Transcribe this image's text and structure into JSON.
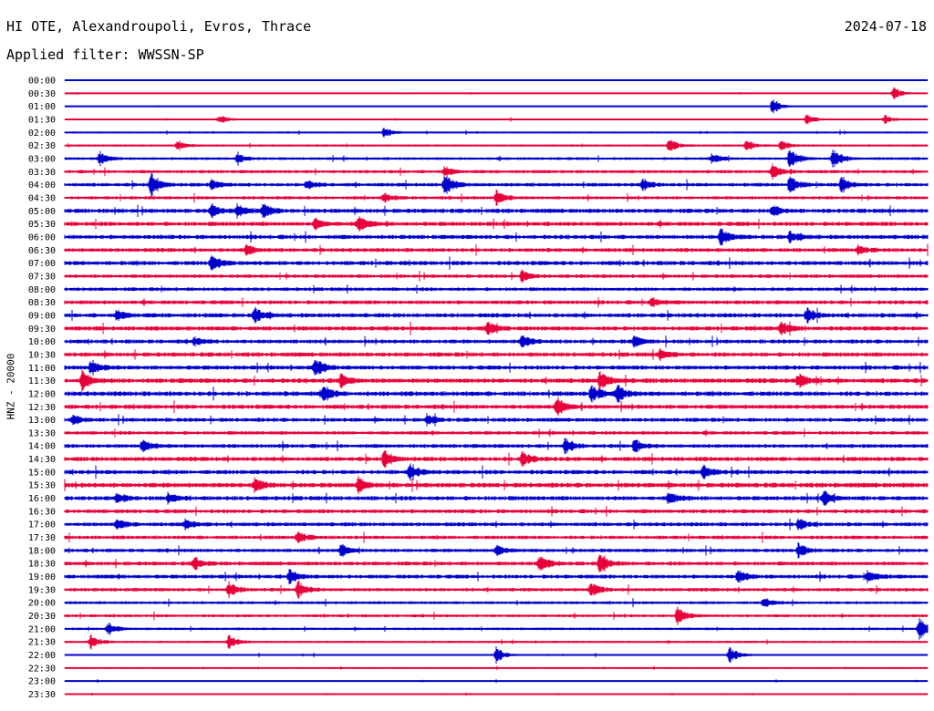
{
  "header": {
    "station": "HI OTE, Alexandroupoli, Evros, Thrace",
    "date": "2024-07-18",
    "filter": "Applied filter: WWSSN-SP"
  },
  "chart_data": {
    "type": "line",
    "title": "HI OTE, Alexandroupoli, Evros, Thrace",
    "ylabel": "HNZ - 20000",
    "xlabel": "",
    "colors": {
      "even": "#0000cc",
      "odd": "#e8003a"
    },
    "rows": [
      "00:00",
      "00:30",
      "01:00",
      "01:30",
      "02:00",
      "02:30",
      "03:00",
      "03:30",
      "04:00",
      "04:30",
      "05:00",
      "05:30",
      "06:00",
      "06:30",
      "07:00",
      "07:30",
      "08:00",
      "08:30",
      "09:00",
      "09:30",
      "10:00",
      "10:30",
      "11:00",
      "11:30",
      "12:00",
      "12:30",
      "13:00",
      "13:30",
      "14:00",
      "14:30",
      "15:00",
      "15:30",
      "16:00",
      "16:30",
      "17:00",
      "17:30",
      "18:00",
      "18:30",
      "19:00",
      "19:30",
      "20:00",
      "20:30",
      "21:00",
      "21:30",
      "22:00",
      "22:30",
      "23:00",
      "23:30"
    ],
    "noise_level": [
      0.3,
      0.5,
      0.4,
      0.8,
      1.0,
      1.2,
      1.6,
      1.8,
      2.0,
      1.8,
      2.4,
      2.4,
      2.4,
      2.2,
      2.4,
      2.0,
      2.0,
      2.2,
      2.4,
      2.4,
      2.2,
      2.4,
      2.4,
      2.6,
      2.6,
      2.4,
      2.2,
      2.0,
      2.2,
      2.4,
      2.4,
      2.6,
      2.4,
      2.2,
      2.2,
      2.0,
      2.0,
      2.2,
      2.2,
      2.0,
      1.6,
      1.6,
      1.4,
      1.2,
      1.0,
      0.8,
      0.7,
      0.6
    ],
    "events": [
      {
        "row": "00:30",
        "t": 0.96,
        "amp": 8
      },
      {
        "row": "01:00",
        "t": 0.82,
        "amp": 10
      },
      {
        "row": "01:30",
        "t": 0.18,
        "amp": 5
      },
      {
        "row": "01:30",
        "t": 0.86,
        "amp": 7
      },
      {
        "row": "01:30",
        "t": 0.95,
        "amp": 5
      },
      {
        "row": "02:00",
        "t": 0.37,
        "amp": 7
      },
      {
        "row": "02:30",
        "t": 0.13,
        "amp": 5
      },
      {
        "row": "02:30",
        "t": 0.7,
        "amp": 8
      },
      {
        "row": "02:30",
        "t": 0.79,
        "amp": 5
      },
      {
        "row": "02:30",
        "t": 0.83,
        "amp": 6
      },
      {
        "row": "03:00",
        "t": 0.04,
        "amp": 8
      },
      {
        "row": "03:00",
        "t": 0.2,
        "amp": 6
      },
      {
        "row": "03:00",
        "t": 0.75,
        "amp": 6
      },
      {
        "row": "03:00",
        "t": 0.84,
        "amp": 12
      },
      {
        "row": "03:00",
        "t": 0.89,
        "amp": 12
      },
      {
        "row": "03:30",
        "t": 0.44,
        "amp": 6
      },
      {
        "row": "03:30",
        "t": 0.82,
        "amp": 8
      },
      {
        "row": "04:00",
        "t": 0.1,
        "amp": 14
      },
      {
        "row": "04:00",
        "t": 0.17,
        "amp": 6
      },
      {
        "row": "04:00",
        "t": 0.28,
        "amp": 5
      },
      {
        "row": "04:00",
        "t": 0.44,
        "amp": 13
      },
      {
        "row": "04:00",
        "t": 0.67,
        "amp": 6
      },
      {
        "row": "04:00",
        "t": 0.84,
        "amp": 10
      },
      {
        "row": "04:00",
        "t": 0.9,
        "amp": 8
      },
      {
        "row": "04:30",
        "t": 0.37,
        "amp": 5
      },
      {
        "row": "04:30",
        "t": 0.5,
        "amp": 9
      },
      {
        "row": "05:00",
        "t": 0.17,
        "amp": 7
      },
      {
        "row": "05:00",
        "t": 0.2,
        "amp": 8
      },
      {
        "row": "05:00",
        "t": 0.23,
        "amp": 8
      },
      {
        "row": "05:00",
        "t": 0.82,
        "amp": 6
      },
      {
        "row": "05:30",
        "t": 0.29,
        "amp": 6
      },
      {
        "row": "05:30",
        "t": 0.34,
        "amp": 9
      },
      {
        "row": "06:00",
        "t": 0.76,
        "amp": 10
      },
      {
        "row": "06:00",
        "t": 0.84,
        "amp": 7
      },
      {
        "row": "06:30",
        "t": 0.21,
        "amp": 6
      },
      {
        "row": "06:30",
        "t": 0.92,
        "amp": 5
      },
      {
        "row": "07:00",
        "t": 0.17,
        "amp": 9
      },
      {
        "row": "07:30",
        "t": 0.53,
        "amp": 7
      },
      {
        "row": "08:30",
        "t": 0.68,
        "amp": 6
      },
      {
        "row": "09:00",
        "t": 0.06,
        "amp": 6
      },
      {
        "row": "09:00",
        "t": 0.22,
        "amp": 10
      },
      {
        "row": "09:00",
        "t": 0.86,
        "amp": 9
      },
      {
        "row": "09:30",
        "t": 0.49,
        "amp": 7
      },
      {
        "row": "09:30",
        "t": 0.83,
        "amp": 7
      },
      {
        "row": "10:00",
        "t": 0.15,
        "amp": 5
      },
      {
        "row": "10:00",
        "t": 0.53,
        "amp": 7
      },
      {
        "row": "10:00",
        "t": 0.66,
        "amp": 6
      },
      {
        "row": "10:30",
        "t": 0.69,
        "amp": 5
      },
      {
        "row": "11:00",
        "t": 0.03,
        "amp": 9
      },
      {
        "row": "11:00",
        "t": 0.29,
        "amp": 11
      },
      {
        "row": "11:30",
        "t": 0.02,
        "amp": 10
      },
      {
        "row": "11:30",
        "t": 0.32,
        "amp": 8
      },
      {
        "row": "11:30",
        "t": 0.62,
        "amp": 10
      },
      {
        "row": "11:30",
        "t": 0.85,
        "amp": 9
      },
      {
        "row": "12:00",
        "t": 0.3,
        "amp": 10
      },
      {
        "row": "12:00",
        "t": 0.61,
        "amp": 10
      },
      {
        "row": "12:00",
        "t": 0.64,
        "amp": 11
      },
      {
        "row": "12:30",
        "t": 0.57,
        "amp": 11
      },
      {
        "row": "13:00",
        "t": 0.01,
        "amp": 6
      },
      {
        "row": "13:00",
        "t": 0.42,
        "amp": 6
      },
      {
        "row": "14:00",
        "t": 0.09,
        "amp": 7
      },
      {
        "row": "14:00",
        "t": 0.58,
        "amp": 9
      },
      {
        "row": "14:00",
        "t": 0.66,
        "amp": 8
      },
      {
        "row": "14:30",
        "t": 0.37,
        "amp": 10
      },
      {
        "row": "14:30",
        "t": 0.53,
        "amp": 9
      },
      {
        "row": "15:00",
        "t": 0.4,
        "amp": 10
      },
      {
        "row": "15:00",
        "t": 0.74,
        "amp": 8
      },
      {
        "row": "15:30",
        "t": 0.22,
        "amp": 8
      },
      {
        "row": "15:30",
        "t": 0.34,
        "amp": 8
      },
      {
        "row": "16:00",
        "t": 0.06,
        "amp": 6
      },
      {
        "row": "16:00",
        "t": 0.12,
        "amp": 6
      },
      {
        "row": "16:00",
        "t": 0.7,
        "amp": 7
      },
      {
        "row": "16:00",
        "t": 0.88,
        "amp": 9
      },
      {
        "row": "17:00",
        "t": 0.06,
        "amp": 6
      },
      {
        "row": "17:00",
        "t": 0.14,
        "amp": 6
      },
      {
        "row": "17:00",
        "t": 0.85,
        "amp": 7
      },
      {
        "row": "17:30",
        "t": 0.27,
        "amp": 7
      },
      {
        "row": "18:00",
        "t": 0.32,
        "amp": 8
      },
      {
        "row": "18:00",
        "t": 0.5,
        "amp": 6
      },
      {
        "row": "18:00",
        "t": 0.85,
        "amp": 8
      },
      {
        "row": "18:30",
        "t": 0.15,
        "amp": 7
      },
      {
        "row": "18:30",
        "t": 0.55,
        "amp": 11
      },
      {
        "row": "18:30",
        "t": 0.62,
        "amp": 10
      },
      {
        "row": "19:00",
        "t": 0.26,
        "amp": 8
      },
      {
        "row": "19:00",
        "t": 0.78,
        "amp": 8
      },
      {
        "row": "19:00",
        "t": 0.93,
        "amp": 7
      },
      {
        "row": "19:30",
        "t": 0.19,
        "amp": 9
      },
      {
        "row": "19:30",
        "t": 0.27,
        "amp": 10
      },
      {
        "row": "19:30",
        "t": 0.61,
        "amp": 8
      },
      {
        "row": "20:00",
        "t": 0.81,
        "amp": 6
      },
      {
        "row": "20:30",
        "t": 0.71,
        "amp": 11
      },
      {
        "row": "21:00",
        "t": 0.05,
        "amp": 7
      },
      {
        "row": "21:00",
        "t": 0.99,
        "amp": 14
      },
      {
        "row": "21:30",
        "t": 0.03,
        "amp": 9
      },
      {
        "row": "21:30",
        "t": 0.19,
        "amp": 8
      },
      {
        "row": "22:00",
        "t": 0.5,
        "amp": 9
      },
      {
        "row": "22:00",
        "t": 0.77,
        "amp": 10
      }
    ]
  }
}
